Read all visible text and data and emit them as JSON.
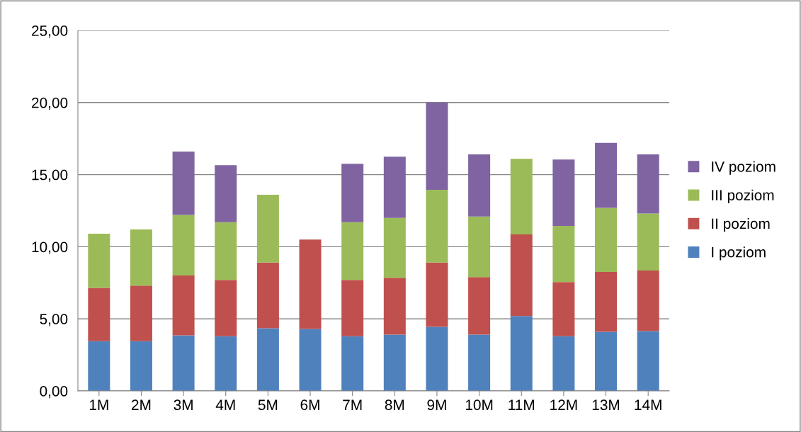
{
  "chart_data": {
    "type": "bar",
    "stacked": true,
    "categories": [
      "1M",
      "2M",
      "3M",
      "4M",
      "5M",
      "6M",
      "7M",
      "8M",
      "9M",
      "10M",
      "11M",
      "12M",
      "13M",
      "14M"
    ],
    "series": [
      {
        "name": "I poziom",
        "color": "#4f81bd",
        "values": [
          3.45,
          3.45,
          3.85,
          3.8,
          4.35,
          4.3,
          3.8,
          3.9,
          4.45,
          3.9,
          5.2,
          3.8,
          4.1,
          4.15
        ]
      },
      {
        "name": "II poziom",
        "color": "#c0504d",
        "values": [
          3.7,
          3.85,
          4.15,
          3.9,
          4.55,
          6.2,
          3.9,
          3.95,
          4.45,
          4.0,
          5.65,
          3.75,
          4.15,
          4.2
        ]
      },
      {
        "name": "III poziom",
        "color": "#9bbb59",
        "values": [
          3.75,
          3.9,
          4.2,
          4.0,
          4.7,
          null,
          4.0,
          4.15,
          5.05,
          4.2,
          5.25,
          3.9,
          4.45,
          3.95
        ]
      },
      {
        "name": "IV poziom",
        "color": "#8064a2",
        "values": [
          null,
          null,
          4.4,
          3.95,
          null,
          null,
          4.05,
          4.25,
          6.05,
          4.3,
          null,
          4.6,
          4.5,
          4.1
        ]
      }
    ],
    "ylim": [
      0,
      25
    ],
    "yticks": [
      {
        "value": 0,
        "label": "0,00"
      },
      {
        "value": 5,
        "label": "5,00"
      },
      {
        "value": 10,
        "label": "10,00"
      },
      {
        "value": 15,
        "label": "15,00"
      },
      {
        "value": 20,
        "label": "20,00"
      },
      {
        "value": 25,
        "label": "25,00"
      }
    ],
    "grid": "y",
    "legend": "right"
  }
}
